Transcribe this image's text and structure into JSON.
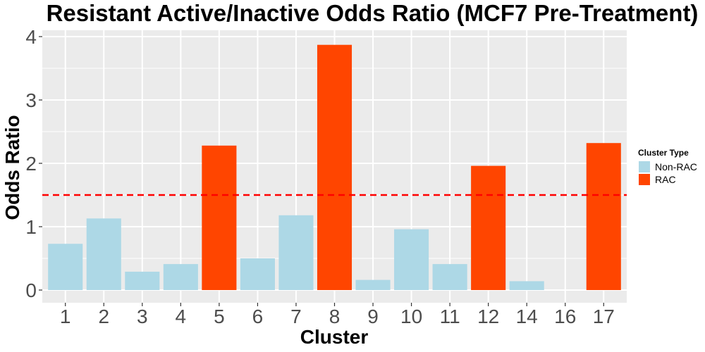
{
  "chart_data": {
    "type": "bar",
    "title": "Resistant Active/Inactive Odds Ratio (MCF7 Pre-Treatment)",
    "xlabel": "Cluster",
    "ylabel": "Odds Ratio",
    "categories": [
      "1",
      "2",
      "3",
      "4",
      "5",
      "6",
      "7",
      "8",
      "9",
      "10",
      "11",
      "12",
      "14",
      "16",
      "17"
    ],
    "values": [
      0.73,
      1.13,
      0.29,
      0.41,
      2.28,
      0.5,
      1.18,
      3.87,
      0.16,
      0.96,
      0.41,
      1.96,
      0.14,
      0.0,
      2.32
    ],
    "types": [
      "Non-RAC",
      "Non-RAC",
      "Non-RAC",
      "Non-RAC",
      "RAC",
      "Non-RAC",
      "Non-RAC",
      "RAC",
      "Non-RAC",
      "Non-RAC",
      "Non-RAC",
      "RAC",
      "Non-RAC",
      "Non-RAC",
      "RAC"
    ],
    "ylim": [
      -0.2,
      4.1
    ],
    "yticks": [
      0,
      1,
      2,
      3,
      4
    ],
    "threshold": 1.5,
    "threshold_color": "#ff0000",
    "grid": true,
    "panel_background": "#ebebeb",
    "legend": {
      "title": "Cluster Type",
      "position": "right",
      "entries": [
        {
          "label": "Non-RAC",
          "color": "#add8e6"
        },
        {
          "label": "RAC",
          "color": "#ff4500"
        }
      ]
    }
  }
}
